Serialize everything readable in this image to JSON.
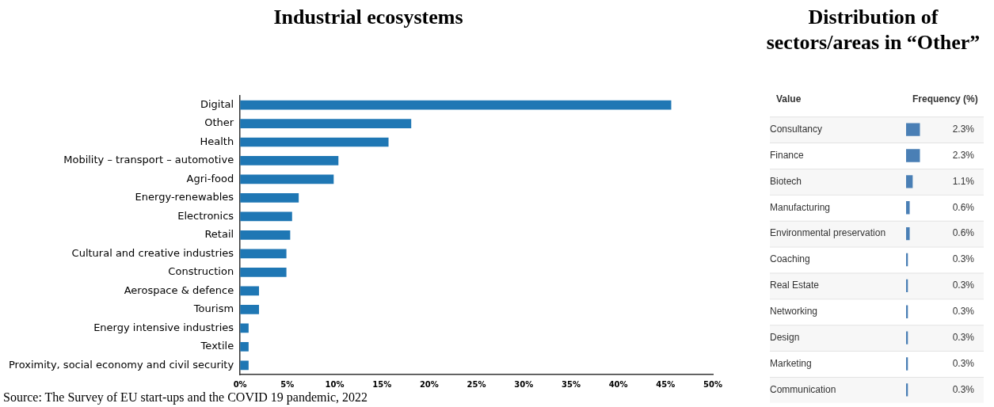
{
  "chart_data": [
    {
      "type": "bar",
      "orientation": "horizontal",
      "title": "Industrial ecosystems",
      "categories": [
        "Digital",
        "Other",
        "Health",
        "Mobility – transport – automotive",
        "Agri-food",
        "Energy-renewables",
        "Electronics",
        "Retail",
        "Cultural and creative industries",
        "Construction",
        "Aerospace & defence",
        "Tourism",
        "Energy intensive industries",
        "Textile",
        "Proximity, social economy and civil security"
      ],
      "values": [
        45.6,
        18.1,
        15.7,
        10.4,
        9.9,
        6.2,
        5.5,
        5.3,
        4.9,
        4.9,
        2.0,
        2.0,
        0.9,
        0.9,
        0.9
      ],
      "color": "#1f77b4",
      "xlim": [
        0,
        50
      ],
      "xticks": [
        {
          "value": 0,
          "label": "0%"
        },
        {
          "value": 5,
          "label": "5%"
        },
        {
          "value": 10,
          "label": "10%"
        },
        {
          "value": 15,
          "label": "15%"
        },
        {
          "value": 20,
          "label": "20%"
        },
        {
          "value": 25,
          "label": "25%"
        },
        {
          "value": 30,
          "label": "30%"
        },
        {
          "value": 35,
          "label": "35%"
        },
        {
          "value": 40,
          "label": "40%"
        },
        {
          "value": 45,
          "label": "45%"
        },
        {
          "value": 50,
          "label": "50%"
        }
      ],
      "annotations": [
        "Source: The Survey of EU start-ups and the COVID 19 pandemic, 2022"
      ]
    },
    {
      "type": "bar",
      "orientation": "horizontal",
      "title": "Distribution of sectors/areas in “Other”",
      "ylabel": "Value",
      "xlabel": "Frequency (%)",
      "categories": [
        "Consultancy",
        "Finance",
        "Biotech",
        "Manufacturing",
        "Environmental preservation",
        "Coaching",
        "Real Estate",
        "Networking",
        "Design",
        "Marketing",
        "Communication"
      ],
      "values": [
        2.3,
        2.3,
        1.1,
        0.6,
        0.6,
        0.3,
        0.3,
        0.3,
        0.3,
        0.3,
        0.3
      ],
      "value_labels": [
        "2.3%",
        "2.3%",
        "1.1%",
        "0.6%",
        "0.6%",
        "0.3%",
        "0.3%",
        "0.3%",
        "0.3%",
        "0.3%",
        "0.3%"
      ],
      "color": "#4a7fb5"
    }
  ]
}
